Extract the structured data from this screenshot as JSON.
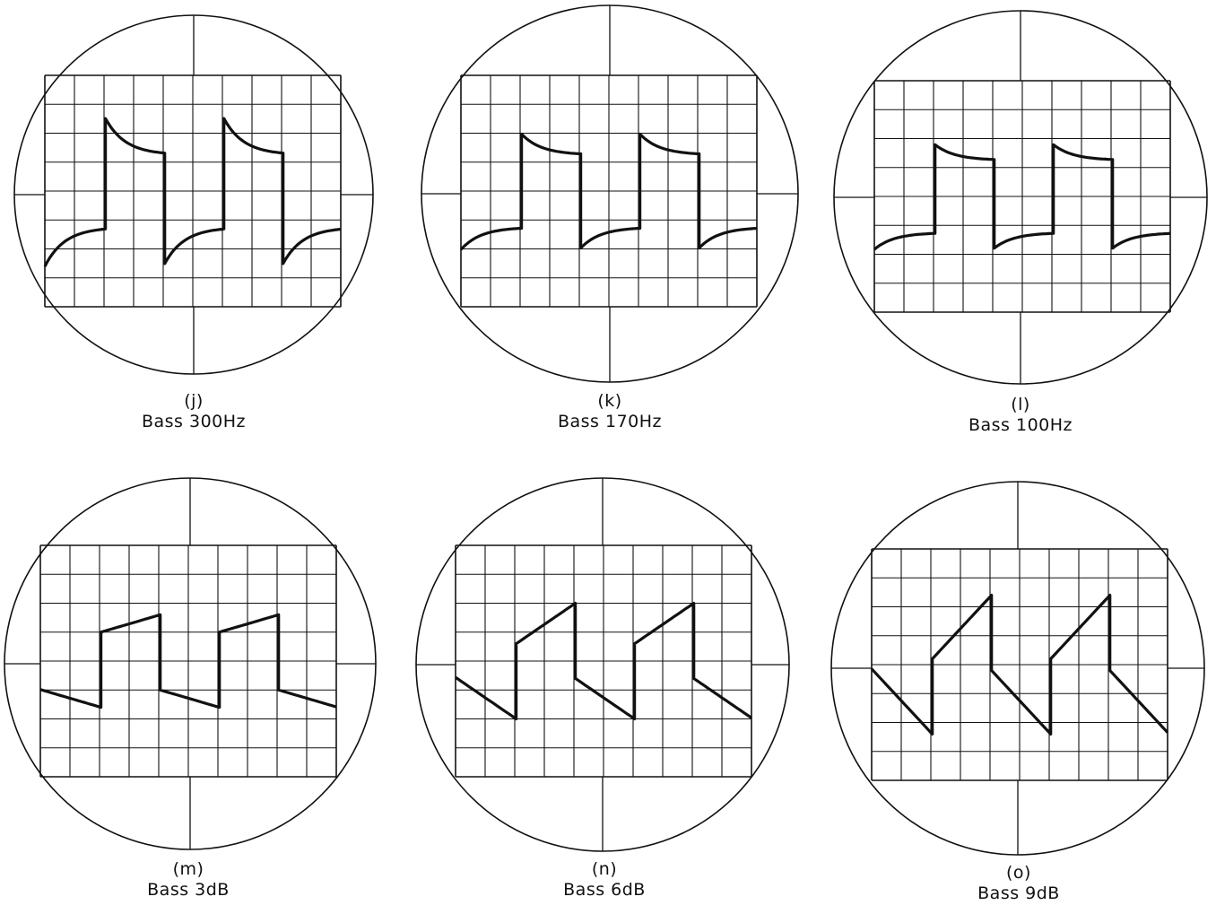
{
  "panels": [
    {
      "id": "j",
      "label": "(j)",
      "caption": "Bass 300Hz",
      "shape": "decay",
      "amount": 0.28
    },
    {
      "id": "k",
      "label": "(k)",
      "caption": "Bass 170Hz",
      "shape": "decay",
      "amount": 0.16
    },
    {
      "id": "l",
      "label": "(l)",
      "caption": "Bass 100Hz",
      "shape": "decay",
      "amount": 0.12
    },
    {
      "id": "m",
      "label": "(m)",
      "caption": "Bass 3dB",
      "shape": "linear",
      "amount": 0.15
    },
    {
      "id": "n",
      "label": "(n)",
      "caption": "Bass 6dB",
      "shape": "linear",
      "amount": 0.35
    },
    {
      "id": "o",
      "label": "(o)",
      "caption": "Bass 9dB",
      "shape": "linear",
      "amount": 0.55
    }
  ],
  "colors": {
    "ink": "#111111",
    "background": "#ffffff"
  }
}
